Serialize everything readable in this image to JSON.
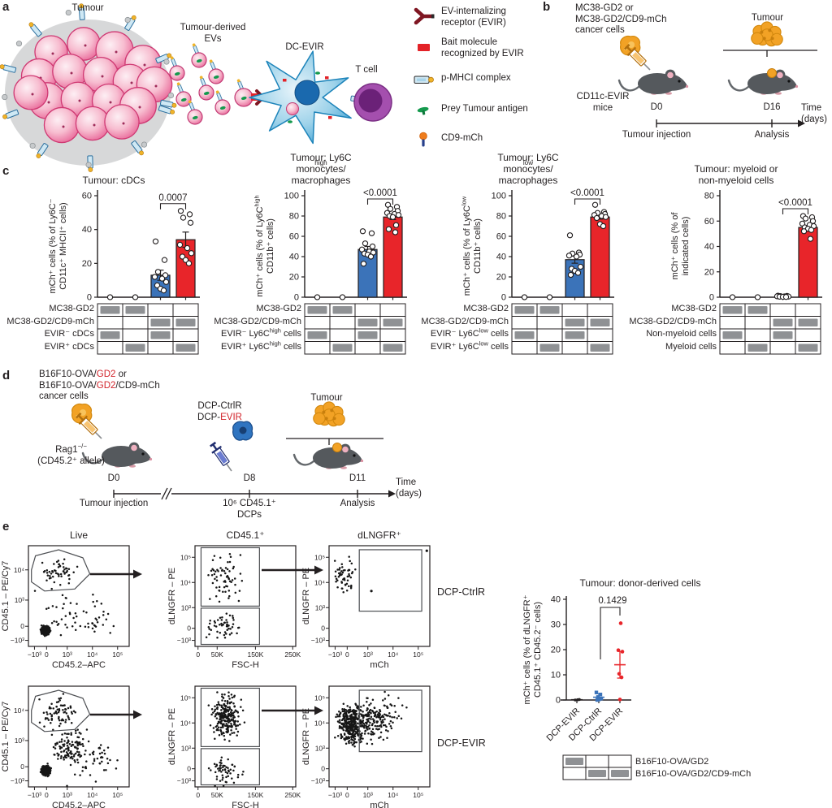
{
  "figure": {
    "panel_labels": {
      "a": "a",
      "b": "b",
      "c": "c",
      "d": "d",
      "e": "e"
    },
    "a": {
      "tumour": "Tumour",
      "evs": "Tumour-derived\nEVs",
      "dc": "DC-EVIR",
      "tcell": "T cell",
      "legend": [
        "EV-internalizing\nreceptor (EVIR)",
        "Bait molecule\nrecognized by EVIR",
        "p-MHCI complex",
        "Prey Tumour antigen",
        "CD9-mCh"
      ]
    },
    "b": {
      "cells": "MC38-GD2 or\nMC38-GD2/CD9-mCh\ncancer cells",
      "mice": "CD11c-EVIR\nmice",
      "tumour": "Tumour",
      "d0": "D0",
      "d16": "D16",
      "inj": "Tumour injection",
      "analysis": "Analysis",
      "time": "Time\n(days)"
    },
    "d": {
      "cells": "B16F10-OVA/%{red:GD2} or\nB16F10-OVA/%{red:GD2}/CD9-mCh\ncancer cells",
      "mice": "Rag1^{−/−}\n(CD45.2⁺ allele)",
      "dcp": "DCP-CtrlR\nDCP-%{red:EVIR}",
      "tumour": "Tumour",
      "d0": "D0",
      "d8": "D8",
      "d11": "D11",
      "inj": "Tumour injection",
      "dcps": "10⁶ CD45.1⁺\nDCPs",
      "analysis": "Analysis",
      "time": "Time\n(days)"
    },
    "e": {
      "flow": {
        "row_labels": [
          "DCP-CtrlR",
          "DCP-EVIR"
        ],
        "titles": [
          "Live",
          "CD45.1⁺",
          "dLNGFR⁺"
        ],
        "xlabels": [
          "CD45.2–APC",
          "FSC-H",
          "mCh"
        ],
        "ylabels": [
          "CD45.1 – PE/Cy7",
          "dLNGFR – PE",
          "dLNGFR – PE"
        ],
        "xticks": [
          [
            "−10³",
            "0",
            "10³",
            "10⁴",
            "10⁵"
          ],
          [
            "0",
            "50K",
            "150K",
            "250K"
          ],
          [
            "−10³",
            "0",
            "10³",
            "10⁴",
            "10⁵"
          ]
        ],
        "yticks": [
          [
            "−10³",
            "0",
            "10³",
            "10⁴"
          ],
          [
            "−10³",
            "0",
            "10³",
            "10⁴",
            "10⁵"
          ],
          [
            "−10³",
            "0",
            "10³",
            "10⁴",
            "10⁵"
          ]
        ]
      }
    }
  },
  "chart_data": [
    {
      "type": "bar",
      "title": "Tumour: cDCs",
      "ylabel": "mCh⁺ cells (% of Ly6C⁻\nCD11c⁺ MHCII⁺ cells)",
      "ylim": [
        0,
        60
      ],
      "yticks": [
        0,
        20,
        40,
        60
      ],
      "pvalue": "0.0007",
      "groups": [
        {
          "color": null,
          "mean": 0,
          "sem": 0,
          "points": [
            0
          ]
        },
        {
          "color": null,
          "mean": 0,
          "sem": 0,
          "points": [
            0
          ]
        },
        {
          "color": "#3b73b9",
          "mean": 13,
          "sem": 3,
          "points": [
            33,
            22,
            15,
            13,
            12,
            11,
            9,
            7,
            5,
            4
          ]
        },
        {
          "color": "#e8252a",
          "mean": 34,
          "sem": 4.5,
          "points": [
            51,
            49,
            47,
            44,
            31,
            29,
            26,
            24,
            22,
            20
          ]
        }
      ],
      "rows": [
        {
          "label": "MC38-GD2",
          "cells": [
            1,
            1,
            0,
            0
          ]
        },
        {
          "label": "MC38-GD2/CD9-mCh",
          "cells": [
            0,
            0,
            1,
            1
          ]
        },
        {
          "label": "EVIR⁻ cDCs",
          "cells": [
            1,
            0,
            1,
            0
          ]
        },
        {
          "label": "EVIR⁺ cDCs",
          "cells": [
            0,
            1,
            0,
            1
          ]
        }
      ]
    },
    {
      "type": "bar",
      "title": "Tumour: Ly6C^{high} monocytes/\nmacrophages",
      "ylabel": "mCh⁺ cells (% of Ly6C^{high}\nCD11b⁺ cells)",
      "ylim": [
        0,
        100
      ],
      "yticks": [
        0,
        20,
        40,
        60,
        80,
        100
      ],
      "pvalue": "<0.0001",
      "groups": [
        {
          "color": null,
          "mean": 0,
          "sem": 0,
          "points": [
            0
          ]
        },
        {
          "color": null,
          "mean": 0,
          "sem": 0,
          "points": [
            0
          ]
        },
        {
          "color": "#3b73b9",
          "mean": 47,
          "sem": 3,
          "points": [
            65,
            63,
            53,
            50,
            47,
            45,
            44,
            43,
            42,
            40,
            33
          ]
        },
        {
          "color": "#e8252a",
          "mean": 79,
          "sem": 2.5,
          "points": [
            91,
            89,
            87,
            85,
            83,
            82,
            81,
            80,
            79,
            71,
            67,
            64
          ]
        }
      ],
      "rows": [
        {
          "label": "MC38-GD2",
          "cells": [
            1,
            1,
            0,
            0
          ]
        },
        {
          "label": "MC38-GD2/CD9-mCh",
          "cells": [
            0,
            0,
            1,
            1
          ]
        },
        {
          "label": "EVIR⁻ Ly6C^{high} cells",
          "cells": [
            1,
            0,
            1,
            0
          ]
        },
        {
          "label": "EVIR⁺ Ly6C^{high} cells",
          "cells": [
            0,
            1,
            0,
            1
          ]
        }
      ]
    },
    {
      "type": "bar",
      "title": "Tumour: Ly6C^{low} monocytes/\nmacrophages",
      "ylabel": "mCh⁺ cells (% of Ly6C^{low}\nCD11b⁺ cells)",
      "ylim": [
        0,
        100
      ],
      "yticks": [
        0,
        20,
        40,
        60,
        80,
        100
      ],
      "pvalue": "<0.0001",
      "groups": [
        {
          "color": null,
          "mean": 0,
          "sem": 0,
          "points": [
            0
          ]
        },
        {
          "color": null,
          "mean": 0,
          "sem": 0,
          "points": [
            0
          ]
        },
        {
          "color": "#3b73b9",
          "mean": 37,
          "sem": 3.5,
          "points": [
            61,
            44,
            43,
            42,
            41,
            40,
            30,
            28,
            26,
            24,
            22
          ]
        },
        {
          "color": "#e8252a",
          "mean": 79,
          "sem": 2,
          "points": [
            91,
            84,
            83,
            82,
            81,
            80,
            79,
            78,
            72,
            70
          ]
        }
      ],
      "rows": [
        {
          "label": "MC38-GD2",
          "cells": [
            1,
            1,
            0,
            0
          ]
        },
        {
          "label": "MC38-GD2/CD9-mCh",
          "cells": [
            0,
            0,
            1,
            1
          ]
        },
        {
          "label": "EVIR⁻ Ly6C^{low} cells",
          "cells": [
            1,
            0,
            1,
            0
          ]
        },
        {
          "label": "EVIR⁺ Ly6C^{low} cells",
          "cells": [
            0,
            1,
            0,
            1
          ]
        }
      ]
    },
    {
      "type": "bar",
      "title": "Tumour: myeloid or\nnon-myeloid cells",
      "ylabel": "mCh⁺ cells (% of\nindicated cells)",
      "ylim": [
        0,
        80
      ],
      "yticks": [
        0,
        20,
        40,
        60,
        80
      ],
      "pvalue": "<0.0001",
      "groups": [
        {
          "color": null,
          "mean": 0,
          "sem": 0,
          "points": [
            0
          ]
        },
        {
          "color": null,
          "mean": 0,
          "sem": 0,
          "points": [
            0
          ]
        },
        {
          "color": null,
          "mean": 0.6,
          "sem": 0.3,
          "points": [
            1.2,
            1,
            0.9,
            0.8,
            0.7,
            0.6,
            0.5,
            0.4,
            0.3,
            0.2
          ]
        },
        {
          "color": "#e8252a",
          "mean": 55,
          "sem": 1.5,
          "points": [
            64,
            63,
            62,
            60,
            58,
            57,
            56,
            55,
            54,
            53,
            52,
            46
          ]
        }
      ],
      "rows": [
        {
          "label": "MC38-GD2",
          "cells": [
            1,
            1,
            0,
            0
          ]
        },
        {
          "label": "MC38-GD2/CD9-mCh",
          "cells": [
            0,
            0,
            1,
            1
          ]
        },
        {
          "label": "Non-myeloid cells",
          "cells": [
            1,
            0,
            1,
            0
          ]
        },
        {
          "label": "Myeloid cells",
          "cells": [
            0,
            1,
            0,
            1
          ]
        }
      ]
    },
    {
      "type": "scatter",
      "title": "Tumour: donor-derived cells",
      "ylabel": [
        "mCh⁺ cells (% of dLNGFR⁺",
        "CD45.1⁺ CD45.2⁻ cells)"
      ],
      "ylim": [
        0,
        40
      ],
      "yticks": [
        0,
        10,
        20,
        30,
        40
      ],
      "pvalue": "0.1429",
      "groups": [
        {
          "label": "DCP-EVIR",
          "color": "#231f20",
          "marker": "circle",
          "points": [
            0,
            0.1,
            0.2
          ],
          "mean": 0.1,
          "err": 0.1
        },
        {
          "label": "DCP-CtrlR",
          "color": "#3b73b9",
          "marker": "square",
          "points": [
            3,
            2.2,
            1.2,
            0.6,
            0.2,
            0
          ],
          "mean": 1.1,
          "err": 1.4
        },
        {
          "label": "DCP-EVIR",
          "color": "#e8252a",
          "marker": "circle",
          "points": [
            30.5,
            19.8,
            19.2,
            10.4,
            9,
            0.2
          ],
          "mean": 14,
          "err": 5.3
        }
      ],
      "rows": [
        {
          "label": "B16F10-OVA/GD2",
          "cells": [
            1,
            0,
            0
          ]
        },
        {
          "label": "B16F10-OVA/GD2/CD9-mCh",
          "cells": [
            0,
            1,
            1
          ]
        }
      ]
    }
  ]
}
